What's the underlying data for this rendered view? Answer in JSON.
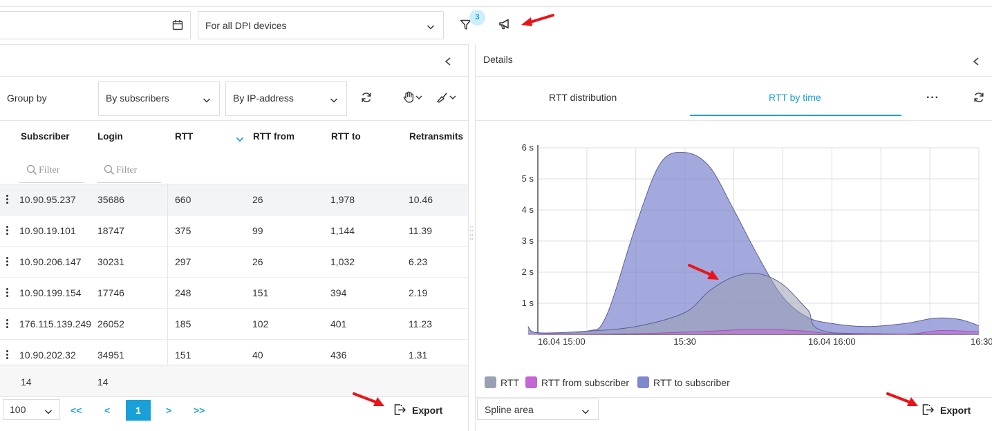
{
  "toolbar": {
    "dpi_select_value": "For all DPI devices",
    "filter_badge_count": "3"
  },
  "left_panel": {
    "group_by_label": "Group by",
    "group_by_select": "By subscribers",
    "ip_select": "By IP-address",
    "columns": [
      "Subscriber",
      "Login",
      "RTT",
      "RTT from",
      "RTT to",
      "Retransmits"
    ],
    "filter_placeholder": "Filter",
    "rows": [
      {
        "subscriber": "10.90.95.237",
        "login": "35686",
        "rtt": "660",
        "rtt_from": "26",
        "rtt_to": "1,978",
        "retransmits": "10.46",
        "selected": true
      },
      {
        "subscriber": "10.90.19.101",
        "login": "18747",
        "rtt": "375",
        "rtt_from": "99",
        "rtt_to": "1,144",
        "retransmits": "11.39"
      },
      {
        "subscriber": "10.90.206.147",
        "login": "30231",
        "rtt": "297",
        "rtt_from": "26",
        "rtt_to": "1,032",
        "retransmits": "6.23"
      },
      {
        "subscriber": "10.90.199.154",
        "login": "17746",
        "rtt": "248",
        "rtt_from": "151",
        "rtt_to": "394",
        "retransmits": "2.19"
      },
      {
        "subscriber": "176.115.139.249",
        "login": "26052",
        "rtt": "185",
        "rtt_from": "102",
        "rtt_to": "401",
        "retransmits": "11.23"
      },
      {
        "subscriber": "10.90.202.32",
        "login": "34951",
        "rtt": "151",
        "rtt_from": "40",
        "rtt_to": "436",
        "retransmits": "1.31"
      }
    ],
    "totals": {
      "subscriber": "14",
      "login": "14"
    },
    "pagination": {
      "page_size": "100",
      "first": "<<",
      "prev": "<",
      "current": "1",
      "next": ">",
      "last": ">>"
    },
    "export_label": "Export"
  },
  "right_panel": {
    "title": "Details",
    "tabs": [
      "RTT distribution",
      "RTT by time"
    ],
    "active_tab": "RTT by time",
    "more_label": "···",
    "chart_type_select": "Spline area",
    "export_label": "Export"
  },
  "chart_data": {
    "type": "area",
    "x_ticks": [
      "16.04 15:00",
      "15:30",
      "16.04 16:00",
      "16:30"
    ],
    "y_ticks": [
      "1 s",
      "2 s",
      "3 s",
      "4 s",
      "5 s",
      "6 s"
    ],
    "ylim": [
      0,
      6
    ],
    "xlim": [
      0,
      90
    ],
    "x_unit": "minutes after 16.04 15:00",
    "grid": true,
    "legend_position": "bottom-left",
    "series": [
      {
        "name": "RTT",
        "color": "#9aa0b3",
        "points": [
          [
            -2,
            0.25
          ],
          [
            0,
            0.05
          ],
          [
            10,
            0.1
          ],
          [
            20,
            0.25
          ],
          [
            30,
            0.7
          ],
          [
            35,
            1.4
          ],
          [
            40,
            1.85
          ],
          [
            45,
            1.95
          ],
          [
            50,
            1.6
          ],
          [
            55,
            0.8
          ],
          [
            60,
            0.05
          ],
          [
            90,
            0.0
          ]
        ]
      },
      {
        "name": "RTT from subscriber",
        "color": "#c466d4",
        "points": [
          [
            -2,
            0.0
          ],
          [
            20,
            0.02
          ],
          [
            35,
            0.1
          ],
          [
            45,
            0.16
          ],
          [
            55,
            0.1
          ],
          [
            60,
            0.02
          ],
          [
            75,
            0.0
          ],
          [
            82,
            0.12
          ],
          [
            90,
            0.08
          ]
        ]
      },
      {
        "name": "RTT to subscriber",
        "color": "#7f88cf",
        "points": [
          [
            -2,
            0.25
          ],
          [
            0,
            0.05
          ],
          [
            10,
            0.1
          ],
          [
            14,
            0.6
          ],
          [
            20,
            3.5
          ],
          [
            25,
            5.5
          ],
          [
            30,
            5.85
          ],
          [
            35,
            5.4
          ],
          [
            40,
            4.0
          ],
          [
            45,
            2.5
          ],
          [
            50,
            1.2
          ],
          [
            55,
            0.55
          ],
          [
            60,
            0.35
          ],
          [
            67,
            0.25
          ],
          [
            75,
            0.35
          ],
          [
            81,
            0.52
          ],
          [
            86,
            0.48
          ],
          [
            90,
            0.28
          ]
        ]
      }
    ]
  }
}
